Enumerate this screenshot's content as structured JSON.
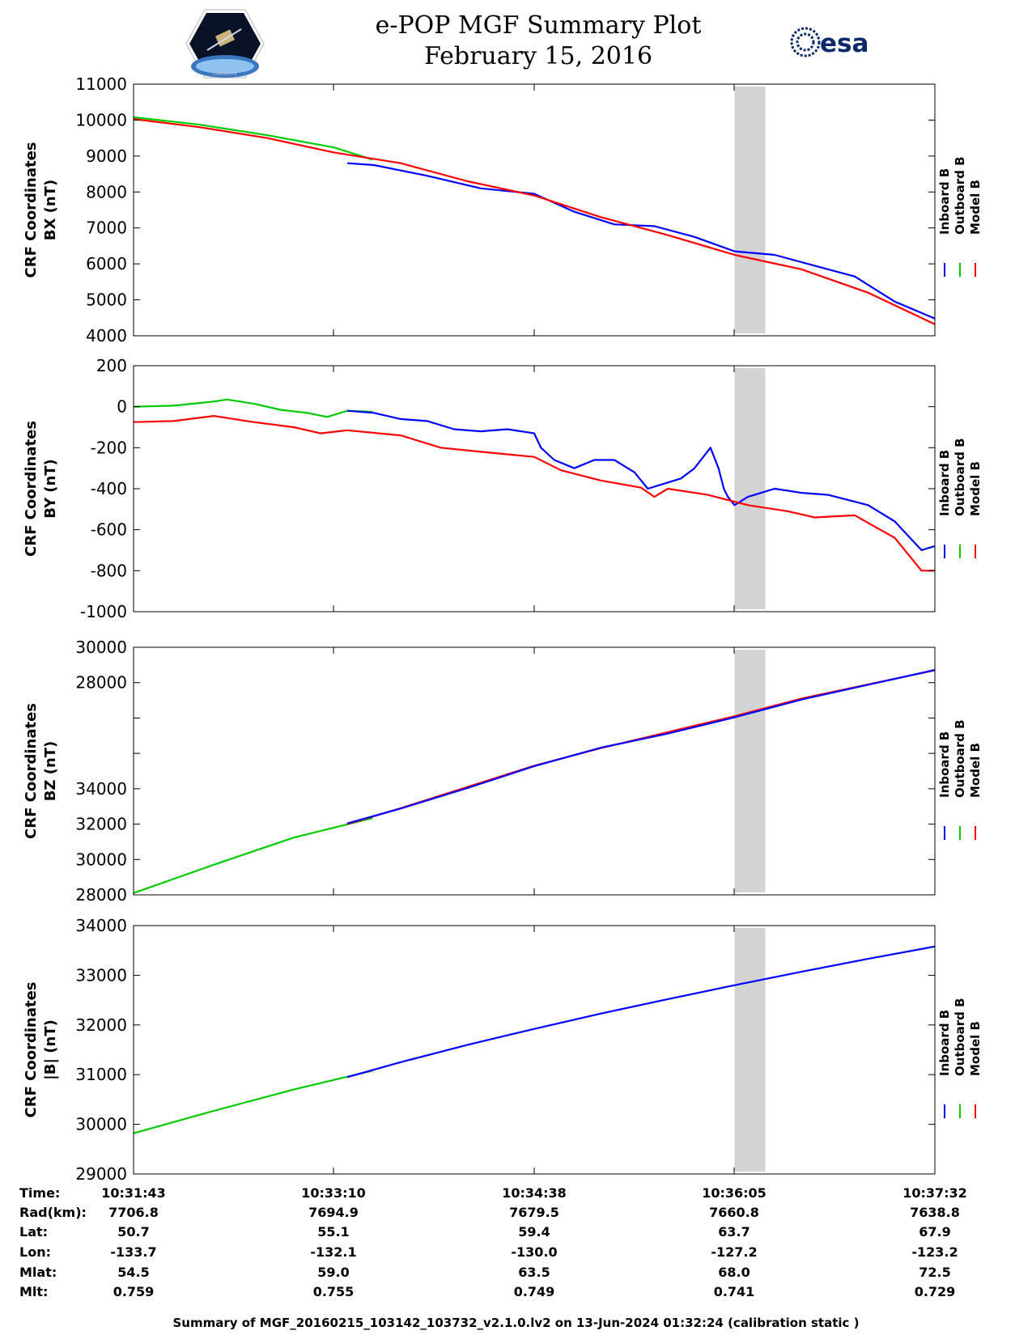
{
  "header": {
    "title": "e-POP MGF Summary Plot",
    "date": "February 15, 2016",
    "logo_left_name": "CASSIOPE",
    "logo_right_text": "esa"
  },
  "colors": {
    "inboard": "#0000ff",
    "outboard": "#00cc00",
    "model": "#ff0000",
    "gap": "#d3d3d3"
  },
  "legend": {
    "inboard": "Inboard B",
    "outboard": "Outboard B",
    "model": "Model B"
  },
  "chart_data": [
    {
      "type": "line",
      "ylabel": [
        "CRF Coordinates",
        "BX (nT)"
      ],
      "yticks": [
        "4000",
        "5000",
        "6000",
        "7000",
        "8000",
        "9000",
        "10000",
        "11000"
      ],
      "ylim": [
        4000,
        11000
      ],
      "x_range_min": [
        0,
        6
      ],
      "gap_min": [
        4.5,
        4.73
      ],
      "series": [
        {
          "name": "Outboard B",
          "color": "#00cc00",
          "x": [
            0,
            0.5,
            1.0,
            1.5,
            1.79
          ],
          "y": [
            10080,
            9870,
            9580,
            9240,
            8900
          ]
        },
        {
          "name": "Inboard B",
          "color": "#0000ff",
          "x": [
            1.6,
            1.8,
            2.2,
            2.6,
            3.0,
            3.3,
            3.6,
            3.9,
            4.2,
            4.5,
            4.8,
            5.1,
            5.4,
            5.7,
            6.0
          ],
          "y": [
            8800,
            8750,
            8450,
            8100,
            7950,
            7450,
            7100,
            7050,
            6750,
            6350,
            6250,
            5950,
            5650,
            4950,
            4480
          ]
        },
        {
          "name": "Model B",
          "color": "#ff0000",
          "x": [
            0,
            0.5,
            1.0,
            1.5,
            2.0,
            2.5,
            3.0,
            3.5,
            4.0,
            4.5,
            5.0,
            5.5,
            6.0
          ],
          "y": [
            10030,
            9800,
            9500,
            9100,
            8800,
            8300,
            7900,
            7300,
            6800,
            6250,
            5850,
            5200,
            4320
          ]
        }
      ]
    },
    {
      "type": "line",
      "ylabel": [
        "CRF Coordinates",
        "BY (nT)"
      ],
      "yticks": [
        "-1000",
        "-800",
        "-600",
        "-400",
        "-200",
        "0",
        "200"
      ],
      "ylim": [
        -1000,
        200
      ],
      "x_range_min": [
        0,
        6
      ],
      "gap_min": [
        4.5,
        4.73
      ],
      "series": [
        {
          "name": "Outboard B",
          "color": "#00cc00",
          "x": [
            0,
            0.3,
            0.6,
            0.7,
            0.9,
            1.1,
            1.3,
            1.45,
            1.6,
            1.79
          ],
          "y": [
            0,
            5,
            25,
            35,
            15,
            -15,
            -30,
            -50,
            -20,
            -25
          ]
        },
        {
          "name": "Inboard B",
          "color": "#0000ff",
          "x": [
            1.6,
            1.8,
            2.0,
            2.2,
            2.4,
            2.6,
            2.8,
            3.0,
            3.05,
            3.15,
            3.3,
            3.45,
            3.6,
            3.75,
            3.85,
            3.95,
            4.1,
            4.2,
            4.32,
            4.38,
            4.42,
            4.45,
            4.5,
            4.6,
            4.7,
            4.8,
            5.0,
            5.2,
            5.5,
            5.7,
            5.9,
            6.0
          ],
          "y": [
            -20,
            -30,
            -60,
            -70,
            -110,
            -120,
            -110,
            -130,
            -200,
            -260,
            -300,
            -260,
            -260,
            -320,
            -400,
            -380,
            -350,
            -300,
            -200,
            -300,
            -400,
            -440,
            -480,
            -440,
            -420,
            -400,
            -420,
            -430,
            -480,
            -560,
            -700,
            -680
          ]
        },
        {
          "name": "Model B",
          "color": "#ff0000",
          "x": [
            0,
            0.3,
            0.6,
            0.9,
            1.2,
            1.4,
            1.6,
            2.0,
            2.3,
            2.6,
            3.0,
            3.2,
            3.5,
            3.8,
            3.9,
            4.0,
            4.3,
            4.6,
            4.9,
            5.1,
            5.4,
            5.7,
            5.9,
            6.0
          ],
          "y": [
            -75,
            -70,
            -45,
            -75,
            -100,
            -130,
            -115,
            -140,
            -200,
            -220,
            -245,
            -310,
            -360,
            -395,
            -440,
            -400,
            -430,
            -480,
            -510,
            -540,
            -530,
            -640,
            -800,
            -800
          ]
        }
      ]
    },
    {
      "type": "line",
      "ylabel": [
        "CRF Coordinates",
        "BZ (nT)"
      ],
      "yticks": [
        "28000",
        "30000",
        "32000",
        "34000",
        "",
        "",
        "28000",
        "30000"
      ],
      "ylim": [
        0,
        7
      ],
      "x_range_min": [
        0,
        6
      ],
      "gap_min": [
        4.5,
        4.73
      ],
      "series": [
        {
          "name": "Outboard B",
          "color": "#00cc00",
          "x": [
            0,
            0.6,
            1.2,
            1.79
          ],
          "y": [
            0.05,
            0.85,
            1.62,
            2.17
          ]
        },
        {
          "name": "Model B",
          "color": "#ff0000",
          "x": [
            1.6,
            2.0,
            2.5,
            3.0,
            3.5,
            4.0,
            4.5,
            5.0,
            5.5,
            6.0
          ],
          "y": [
            2.0,
            2.45,
            3.05,
            3.65,
            4.15,
            4.6,
            5.05,
            5.55,
            5.95,
            6.35
          ]
        },
        {
          "name": "Inboard B",
          "color": "#0000ff",
          "x": [
            1.6,
            2.0,
            2.5,
            3.0,
            3.5,
            4.0,
            4.5,
            5.0,
            5.5,
            6.0
          ],
          "y": [
            2.02,
            2.44,
            3.02,
            3.64,
            4.16,
            4.56,
            5.02,
            5.52,
            5.94,
            6.36
          ]
        }
      ]
    },
    {
      "type": "line",
      "ylabel": [
        "CRF Coordinates",
        "|B| (nT)"
      ],
      "yticks": [
        "29000",
        "30000",
        "31000",
        "32000",
        "33000",
        "34000"
      ],
      "ylim": [
        29000,
        34000
      ],
      "x_range_min": [
        0,
        6
      ],
      "gap_min": [
        4.5,
        4.73
      ],
      "series": [
        {
          "name": "Outboard B",
          "color": "#00cc00",
          "x": [
            0,
            0.6,
            1.2,
            1.79
          ],
          "y": [
            29820,
            30270,
            30700,
            31080
          ]
        },
        {
          "name": "Inboard B",
          "color": "#0000ff",
          "x": [
            1.6,
            2.0,
            2.5,
            3.0,
            3.5,
            4.0,
            4.5,
            5.0,
            5.5,
            6.0
          ],
          "y": [
            30950,
            31250,
            31600,
            31920,
            32230,
            32520,
            32800,
            33070,
            33330,
            33580
          ]
        }
      ]
    }
  ],
  "time_table": {
    "row_labels": [
      "Time:",
      "Rad(km):",
      "Lat:",
      "Lon:",
      "Mlat:",
      "Mlt:"
    ],
    "columns": [
      [
        "10:31:43",
        "7706.8",
        "50.7",
        "-133.7",
        "54.5",
        "0.759"
      ],
      [
        "10:33:10",
        "7694.9",
        "55.1",
        "-132.1",
        "59.0",
        "0.755"
      ],
      [
        "10:34:38",
        "7679.5",
        "59.4",
        "-130.0",
        "63.5",
        "0.749"
      ],
      [
        "10:36:05",
        "7660.8",
        "63.7",
        "-127.2",
        "68.0",
        "0.741"
      ],
      [
        "10:37:32",
        "7638.8",
        "67.9",
        "-123.2",
        "72.5",
        "0.729"
      ]
    ]
  },
  "footer": "Summary of MGF_20160215_103142_103732_v2.1.0.lv2 on 13-Jun-2024 01:32:24 (calibration static )"
}
